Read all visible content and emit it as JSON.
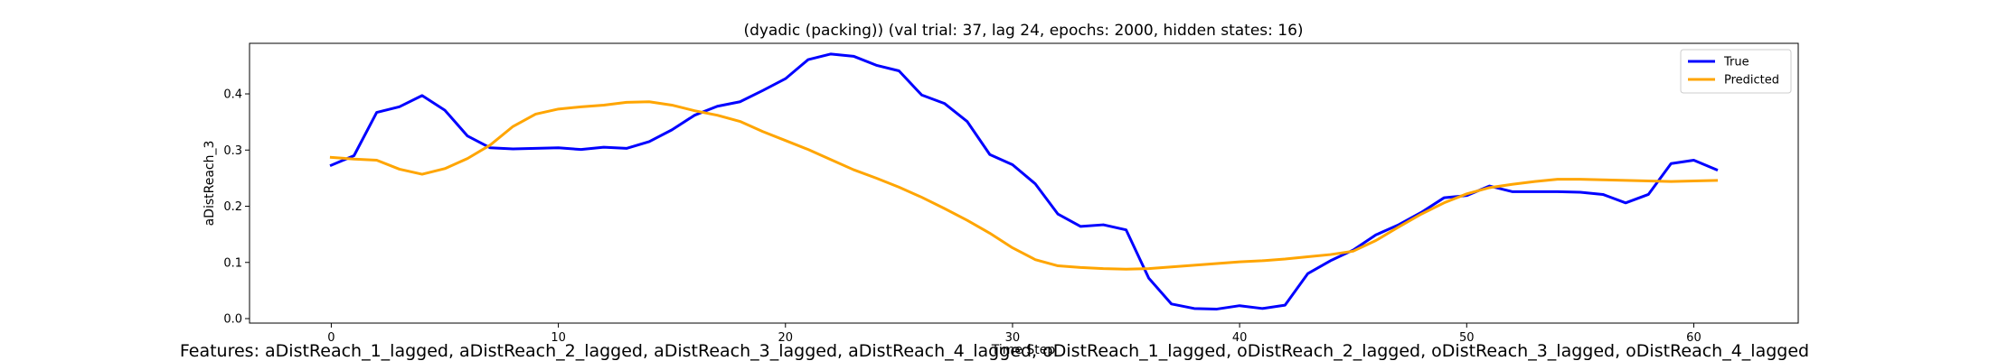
{
  "chart_data": {
    "type": "line",
    "title": "(dyadic (packing)) (val trial: 37, lag 24, epochs: 2000, hidden states: 16)",
    "xlabel": "Time Step",
    "ylabel": "aDistReach_3",
    "xlim": [
      -3.6,
      64.6
    ],
    "ylim": [
      -0.008,
      0.49
    ],
    "xticks": [
      0,
      10,
      20,
      30,
      40,
      50,
      60
    ],
    "yticks": [
      0.0,
      0.1,
      0.2,
      0.3,
      0.4
    ],
    "ytick_labels": [
      "0.0",
      "0.1",
      "0.2",
      "0.3",
      "0.4"
    ],
    "grid": false,
    "legend_position": "top-right",
    "series": [
      {
        "name": "True",
        "color": "#0000ff",
        "values": [
          0.273,
          0.29,
          0.367,
          0.377,
          0.397,
          0.371,
          0.325,
          0.304,
          0.302,
          0.303,
          0.304,
          0.301,
          0.305,
          0.303,
          0.315,
          0.336,
          0.362,
          0.378,
          0.386,
          0.406,
          0.427,
          0.461,
          0.471,
          0.467,
          0.451,
          0.441,
          0.398,
          0.383,
          0.351,
          0.292,
          0.274,
          0.24,
          0.186,
          0.164,
          0.167,
          0.158,
          0.072,
          0.026,
          0.018,
          0.017,
          0.023,
          0.018,
          0.024,
          0.08,
          0.103,
          0.122,
          0.149,
          0.167,
          0.189,
          0.215,
          0.219,
          0.236,
          0.226,
          0.226,
          0.226,
          0.225,
          0.221,
          0.206,
          0.221,
          0.276,
          0.282,
          0.265
        ]
      },
      {
        "name": "Predicted",
        "color": "#ffa500",
        "values": [
          0.287,
          0.284,
          0.282,
          0.266,
          0.257,
          0.267,
          0.285,
          0.309,
          0.342,
          0.364,
          0.373,
          0.377,
          0.38,
          0.385,
          0.386,
          0.38,
          0.37,
          0.362,
          0.351,
          0.333,
          0.317,
          0.301,
          0.283,
          0.265,
          0.25,
          0.234,
          0.216,
          0.196,
          0.175,
          0.152,
          0.126,
          0.105,
          0.094,
          0.091,
          0.089,
          0.088,
          0.089,
          0.092,
          0.095,
          0.098,
          0.101,
          0.103,
          0.106,
          0.11,
          0.114,
          0.12,
          0.139,
          0.163,
          0.186,
          0.206,
          0.222,
          0.233,
          0.239,
          0.244,
          0.248,
          0.248,
          0.247,
          0.246,
          0.245,
          0.244,
          0.245,
          0.246
        ]
      }
    ]
  },
  "footer_text": "Features: aDistReach_1_lagged, aDistReach_2_lagged, aDistReach_3_lagged, aDistReach_4_lagged, oDistReach_1_lagged, oDistReach_2_lagged, oDistReach_3_lagged, oDistReach_4_lagged"
}
